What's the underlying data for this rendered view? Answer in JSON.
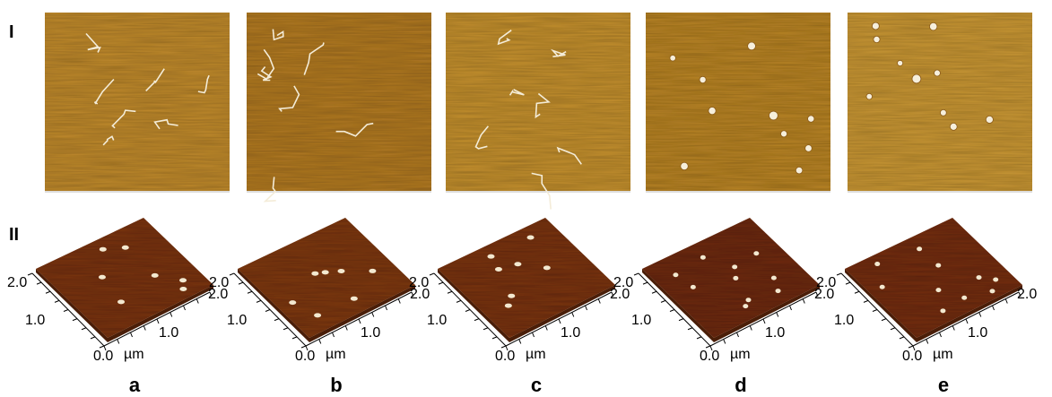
{
  "rows": [
    "I",
    "II"
  ],
  "panels": [
    {
      "label": "a",
      "axis": {
        "y_max": "2.0",
        "y_mid": "1.0",
        "origin": "0.0",
        "unit": "µm",
        "x_mid": "1.0",
        "x_max": "2.0"
      }
    },
    {
      "label": "b",
      "axis": {
        "y_max": "2.0",
        "y_mid": "1.0",
        "origin": "0.0",
        "unit": "µm",
        "x_mid": "1.0",
        "x_max": "2.0"
      }
    },
    {
      "label": "c",
      "axis": {
        "y_max": "2.0",
        "y_mid": "1.0",
        "origin": "0.0",
        "unit": "µm",
        "x_mid": "1.0",
        "x_max": "2.0"
      }
    },
    {
      "label": "d",
      "axis": {
        "y_max": "2.0",
        "y_mid": "1.0",
        "origin": "0.0",
        "unit": "µm",
        "x_mid": "1.0",
        "x_max": "2.0"
      }
    },
    {
      "label": "e",
      "axis": {
        "y_max": "2.0",
        "y_mid": "1.0",
        "origin": "0.0",
        "unit": "µm",
        "x_mid": "1.0",
        "x_max": "2.0"
      }
    }
  ]
}
